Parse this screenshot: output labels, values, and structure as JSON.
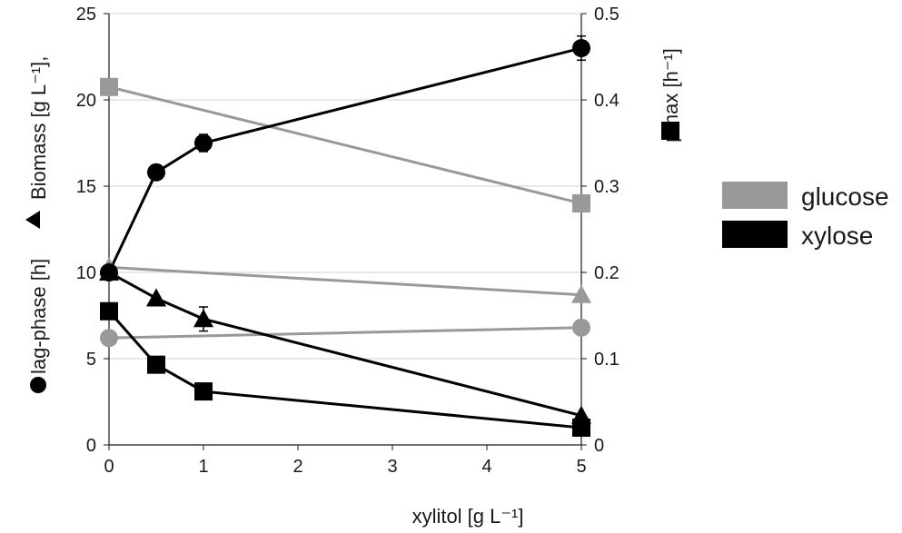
{
  "chart_data": {
    "type": "line",
    "xlabel": "xylitol [g L⁻¹]",
    "ylabel_left": {
      "biomass": "Biomass [g L⁻¹],",
      "lag": "lag-phase [h]"
    },
    "ylabel_right": "μmax [h⁻¹]",
    "x_ticks": [
      "0",
      "1",
      "2",
      "3",
      "4",
      "5"
    ],
    "y_left_ticks": [
      "0",
      "5",
      "10",
      "15",
      "20",
      "25"
    ],
    "y_right_ticks": [
      "0",
      "0.1",
      "0.2",
      "0.3",
      "0.4",
      "0.5"
    ],
    "xlim": [
      0,
      5
    ],
    "ylim_left": [
      0,
      25
    ],
    "ylim_right": [
      0,
      0.5
    ],
    "grid": "horizontal",
    "legend_position": "right",
    "legend": [
      {
        "label": "glucose",
        "color": "#999999"
      },
      {
        "label": "xylose",
        "color": "#000000"
      }
    ],
    "series": [
      {
        "sugar": "glucose",
        "metric": "lag-phase",
        "axis": "left",
        "marker": "circle",
        "color": "#999999",
        "x": [
          0,
          5
        ],
        "y": [
          6.2,
          6.8
        ]
      },
      {
        "sugar": "glucose",
        "metric": "biomass",
        "axis": "left",
        "marker": "triangle",
        "color": "#999999",
        "x": [
          0,
          5
        ],
        "y": [
          10.3,
          8.7
        ]
      },
      {
        "sugar": "glucose",
        "metric": "mumax",
        "axis": "right",
        "marker": "square",
        "color": "#999999",
        "x": [
          0,
          5
        ],
        "y": [
          0.415,
          0.28
        ]
      },
      {
        "sugar": "xylose",
        "metric": "lag-phase",
        "axis": "left",
        "marker": "circle",
        "color": "#000000",
        "x": [
          0,
          0.5,
          1,
          5
        ],
        "y": [
          10,
          15.8,
          17.5,
          23
        ],
        "err": [
          0,
          0,
          0.5,
          0.7
        ]
      },
      {
        "sugar": "xylose",
        "metric": "biomass",
        "axis": "left",
        "marker": "triangle",
        "color": "#000000",
        "x": [
          0,
          0.5,
          1,
          5
        ],
        "y": [
          10,
          8.5,
          7.3,
          1.7
        ],
        "err": [
          0,
          0,
          0.7,
          0
        ]
      },
      {
        "sugar": "xylose",
        "metric": "mumax",
        "axis": "right",
        "marker": "square",
        "color": "#000000",
        "x": [
          0,
          0.5,
          1,
          5
        ],
        "y": [
          0.155,
          0.093,
          0.062,
          0.02
        ]
      }
    ]
  }
}
